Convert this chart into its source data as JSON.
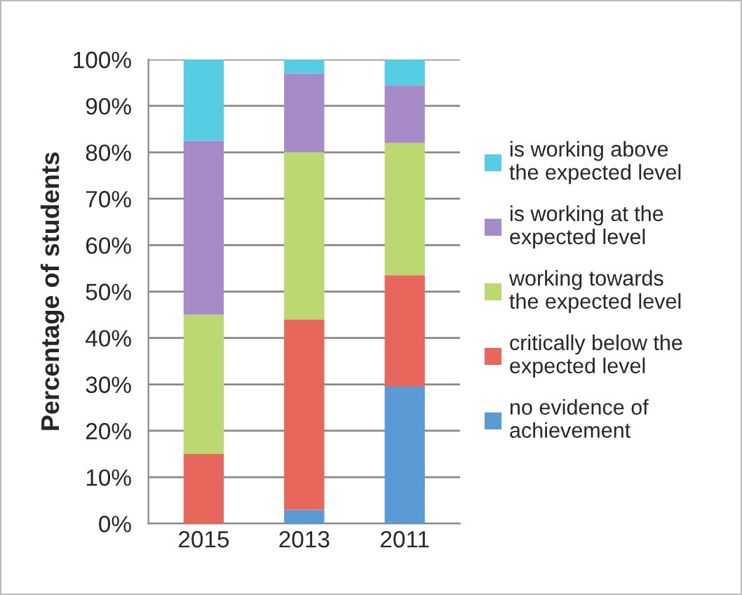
{
  "chart_data": {
    "type": "bar",
    "stacked": true,
    "ylabel": "Percentage of students",
    "categories": [
      "2015",
      "2013",
      "2011"
    ],
    "series": [
      {
        "name": "no evidence of\nachievement",
        "color": "#5b9bd5",
        "values": [
          0,
          3,
          29.5
        ]
      },
      {
        "name": "critically below the\nexpected level",
        "color": "#e8675c",
        "values": [
          15,
          41,
          24
        ]
      },
      {
        "name": "working towards\nthe expected level",
        "color": "#bcd870",
        "values": [
          30,
          36,
          28.5
        ]
      },
      {
        "name": "is working at the\nexpected level",
        "color": "#a68bc8",
        "values": [
          37.5,
          17,
          12.5
        ]
      },
      {
        "name": "is working above\nthe expected level",
        "color": "#55cde3",
        "values": [
          17.5,
          3,
          5.5
        ]
      }
    ],
    "ylim": [
      0,
      100
    ],
    "yticks": [
      {
        "value": 0,
        "label": "0%"
      },
      {
        "value": 10,
        "label": "10%"
      },
      {
        "value": 20,
        "label": "20%"
      },
      {
        "value": 30,
        "label": "30%"
      },
      {
        "value": 40,
        "label": "40%"
      },
      {
        "value": 50,
        "label": "50%"
      },
      {
        "value": 60,
        "label": "60%"
      },
      {
        "value": 70,
        "label": "70%"
      },
      {
        "value": 80,
        "label": "80%"
      },
      {
        "value": 90,
        "label": "90%"
      },
      {
        "value": 100,
        "label": "100%"
      }
    ],
    "grid": "y",
    "legend": "right"
  }
}
